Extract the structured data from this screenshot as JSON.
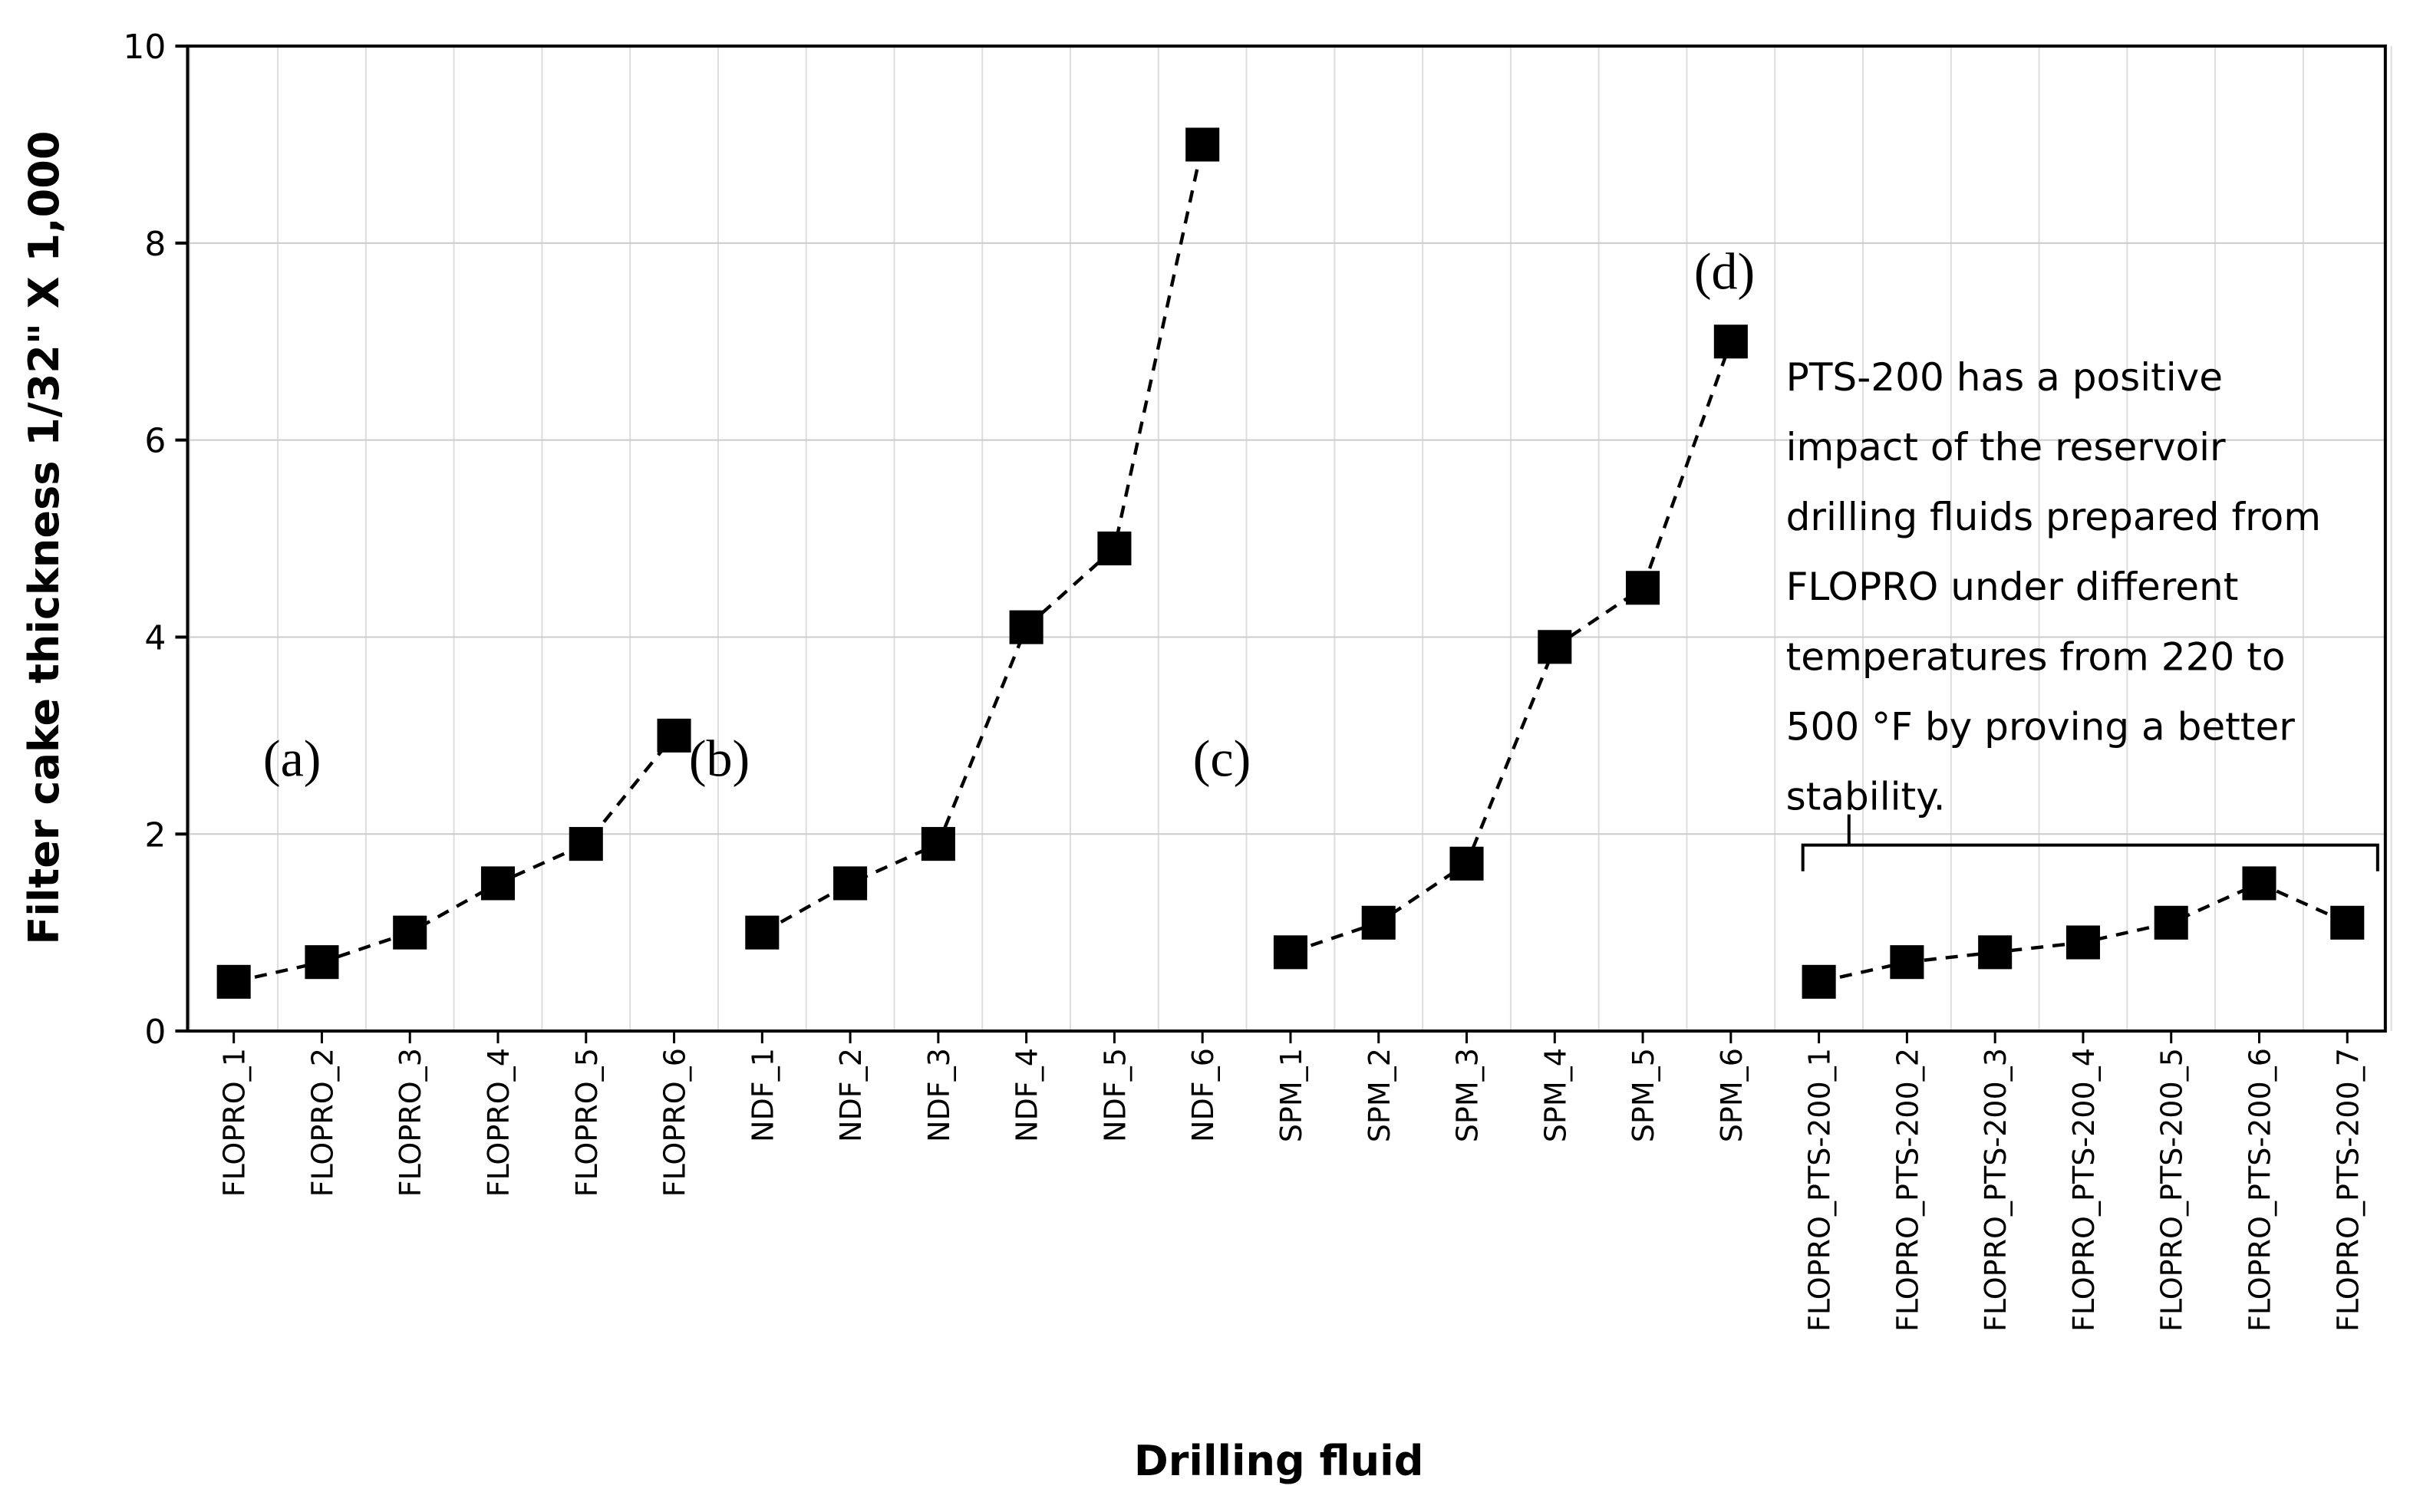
{
  "chart_data": {
    "type": "line",
    "xlabel": "Drilling fluid",
    "ylabel": "Filter cake thickness 1/32\" X 1,000",
    "categories": [
      "FLOPRO_1",
      "FLOPRO_2",
      "FLOPRO_3",
      "FLOPRO_4",
      "FLOPRO_5",
      "FLOPRO_6",
      "NDF_1",
      "NDF_2",
      "NDF_3",
      "NDF_4",
      "NDF_5",
      "NDF_6",
      "SPM_1",
      "SPM_2",
      "SPM_3",
      "SPM_4",
      "SPM_5",
      "SPM_6",
      "FLOPRO_PTS-200_1",
      "FLOPRO_PTS-200_2",
      "FLOPRO_PTS-200_3",
      "FLOPRO_PTS-200_4",
      "FLOPRO_PTS-200_5",
      "FLOPRO_PTS-200_6",
      "FLOPRO_PTS-200_7"
    ],
    "series": [
      {
        "color": "#000000",
        "values": [
          0.5,
          0.7,
          1.0,
          1.5,
          1.9,
          3.0,
          null,
          null,
          null,
          null,
          null,
          null,
          null,
          null,
          null,
          null,
          null,
          null,
          null,
          null,
          null,
          null,
          null,
          null,
          null
        ]
      },
      {
        "color": "#000000",
        "values": [
          null,
          null,
          null,
          null,
          null,
          null,
          1.0,
          1.5,
          1.9,
          4.1,
          4.9,
          9.0,
          null,
          null,
          null,
          null,
          null,
          null,
          null,
          null,
          null,
          null,
          null,
          null,
          null
        ]
      },
      {
        "color": "#000000",
        "values": [
          null,
          null,
          null,
          null,
          null,
          null,
          null,
          null,
          null,
          null,
          null,
          null,
          0.8,
          1.1,
          1.7,
          3.9,
          4.5,
          7.0,
          null,
          null,
          null,
          null,
          null,
          null,
          null
        ]
      },
      {
        "color": "#000000",
        "values": [
          null,
          null,
          null,
          null,
          null,
          null,
          null,
          null,
          null,
          null,
          null,
          null,
          null,
          null,
          null,
          null,
          null,
          null,
          0.5,
          0.7,
          0.8,
          0.9,
          1.1,
          1.5,
          1.1
        ]
      }
    ],
    "ylim": [
      0,
      10
    ],
    "yticks": [
      0,
      2,
      4,
      6,
      8,
      10
    ],
    "grid": true,
    "annotations": [
      "(a)",
      "(b)",
      "(c)",
      "(d)"
    ],
    "note": [
      "PTS-200 has a positive",
      "impact of the reservoir",
      "drilling fluids prepared from",
      "FLOPRO under different",
      "temperatures from 220 to",
      "500 °F by proving a better",
      "stability."
    ]
  }
}
